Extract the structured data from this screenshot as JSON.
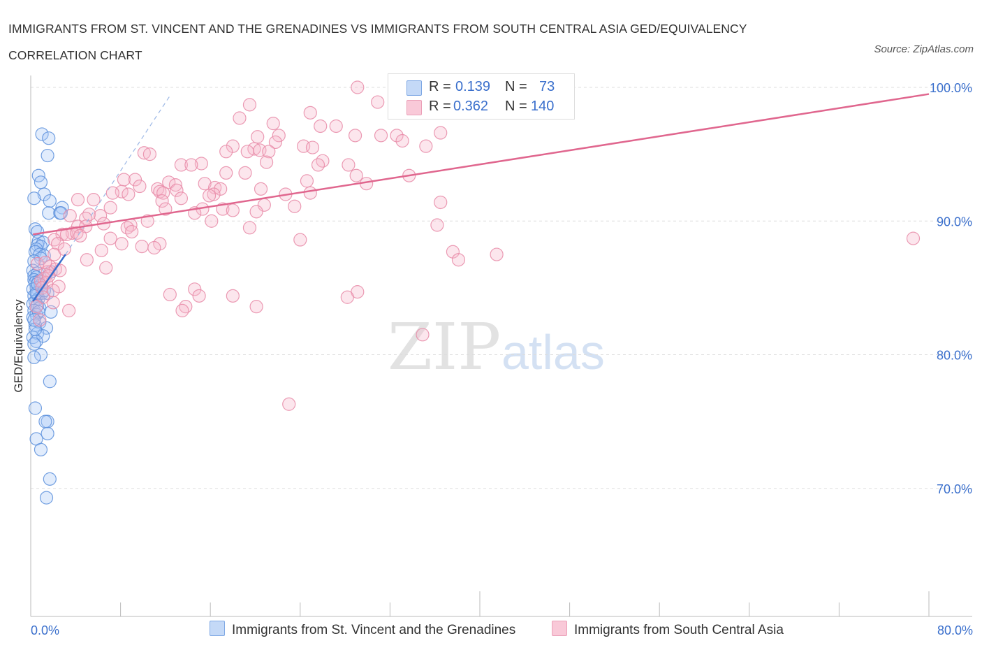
{
  "title": "IMMIGRANTS FROM ST. VINCENT AND THE GRENADINES VS IMMIGRANTS FROM SOUTH CENTRAL ASIA GED/EQUIVALENCY CORRELATION CHART",
  "source": "Source: ZipAtlas.com",
  "watermark": {
    "zip": "ZIP",
    "atlas": "atlas"
  },
  "legend": {
    "r_label": "R =",
    "n_label": "N =",
    "rows": [
      {
        "r": "0.139",
        "n": "73"
      },
      {
        "r": "0.362",
        "n": "140"
      }
    ]
  },
  "colors": {
    "blue_fill": "#a9c8f5",
    "blue_stroke": "#5b8fdc",
    "blue_line": "#3a6fcc",
    "pink_fill": "#f6b8cb",
    "pink_stroke": "#e889a7",
    "pink_line": "#e0668e",
    "tick_label": "#3a6fcc",
    "grid": "#dddddd"
  },
  "chart_data": {
    "type": "scatter",
    "ylabel": "GED/Equivalency",
    "xlabel": "",
    "xlim": [
      0,
      80
    ],
    "ylim": [
      60,
      100
    ],
    "x_tick_labels": [
      "0.0%",
      "80.0%"
    ],
    "y_ticks": [
      70,
      80,
      90,
      100
    ],
    "y_tick_labels": [
      "70.0%",
      "80.0%",
      "90.0%",
      "100.0%"
    ],
    "grid": true,
    "legend_position": "top-center",
    "series": [
      {
        "name": "Immigrants from St. Vincent and the Grenadines",
        "color": "blue",
        "trend": {
          "x": [
            0.2,
            3.1
          ],
          "y": [
            84.0,
            87.5
          ]
        },
        "trend_extension": {
          "x": [
            3.1,
            12.5
          ],
          "y": [
            87.5,
            99.5
          ]
        },
        "points": [
          [
            1.0,
            96.5
          ],
          [
            1.6,
            96.2
          ],
          [
            1.5,
            94.9
          ],
          [
            0.7,
            93.4
          ],
          [
            0.9,
            92.9
          ],
          [
            1.2,
            92.0
          ],
          [
            0.3,
            91.7
          ],
          [
            1.7,
            91.5
          ],
          [
            2.8,
            91.0
          ],
          [
            1.6,
            90.6
          ],
          [
            2.6,
            90.6
          ],
          [
            2.7,
            90.6
          ],
          [
            0.4,
            89.4
          ],
          [
            0.6,
            89.2
          ],
          [
            0.7,
            88.5
          ],
          [
            1.1,
            88.4
          ],
          [
            0.6,
            88.2
          ],
          [
            0.9,
            88.1
          ],
          [
            0.5,
            87.9
          ],
          [
            0.4,
            87.7
          ],
          [
            0.8,
            87.5
          ],
          [
            1.2,
            87.4
          ],
          [
            0.9,
            87.2
          ],
          [
            0.3,
            87.0
          ],
          [
            0.2,
            86.3
          ],
          [
            0.6,
            86.1
          ],
          [
            1.8,
            86.2
          ],
          [
            0.3,
            85.9
          ],
          [
            0.5,
            85.8
          ],
          [
            0.3,
            85.6
          ],
          [
            0.7,
            85.5
          ],
          [
            0.4,
            85.4
          ],
          [
            0.9,
            85.2
          ],
          [
            0.5,
            85.0
          ],
          [
            0.2,
            84.9
          ],
          [
            1.0,
            84.6
          ],
          [
            0.6,
            84.5
          ],
          [
            0.3,
            84.4
          ],
          [
            1.5,
            84.6
          ],
          [
            0.7,
            84.2
          ],
          [
            0.4,
            84.0
          ],
          [
            0.2,
            83.8
          ],
          [
            0.6,
            83.7
          ],
          [
            0.8,
            83.5
          ],
          [
            0.3,
            83.3
          ],
          [
            1.8,
            83.2
          ],
          [
            0.5,
            83.0
          ],
          [
            0.2,
            82.8
          ],
          [
            0.8,
            82.4
          ],
          [
            0.4,
            82.2
          ],
          [
            1.4,
            82.0
          ],
          [
            0.6,
            81.6
          ],
          [
            0.2,
            81.3
          ],
          [
            1.1,
            81.4
          ],
          [
            0.5,
            81.0
          ],
          [
            0.3,
            80.8
          ],
          [
            0.9,
            80.0
          ],
          [
            0.3,
            79.8
          ],
          [
            1.7,
            78.0
          ],
          [
            0.4,
            76.0
          ],
          [
            1.5,
            75.0
          ],
          [
            1.3,
            75.0
          ],
          [
            1.5,
            74.1
          ],
          [
            0.5,
            73.7
          ],
          [
            0.9,
            72.9
          ],
          [
            1.7,
            70.7
          ],
          [
            1.4,
            69.3
          ],
          [
            0.5,
            84.6
          ],
          [
            0.7,
            83.2
          ],
          [
            0.4,
            81.9
          ],
          [
            0.6,
            85.3
          ],
          [
            1.2,
            84.8
          ],
          [
            0.3,
            82.6
          ]
        ]
      },
      {
        "name": "Immigrants from South Central Asia",
        "color": "pink",
        "trend": {
          "x": [
            0.2,
            80
          ],
          "y": [
            89.0,
            99.5
          ]
        },
        "points": [
          [
            29.1,
            100.0
          ],
          [
            30.9,
            98.9
          ],
          [
            19.5,
            98.7
          ],
          [
            33.9,
            98.4
          ],
          [
            24.9,
            98.1
          ],
          [
            18.6,
            97.7
          ],
          [
            21.6,
            97.3
          ],
          [
            27.2,
            97.1
          ],
          [
            25.8,
            97.1
          ],
          [
            36.5,
            96.6
          ],
          [
            22.1,
            96.4
          ],
          [
            28.9,
            96.4
          ],
          [
            31.2,
            96.4
          ],
          [
            32.6,
            96.4
          ],
          [
            20.2,
            96.3
          ],
          [
            33.1,
            96.0
          ],
          [
            21.8,
            95.9
          ],
          [
            24.3,
            95.6
          ],
          [
            25.1,
            95.5
          ],
          [
            35.2,
            95.6
          ],
          [
            18.0,
            95.6
          ],
          [
            19.9,
            95.4
          ],
          [
            20.4,
            95.3
          ],
          [
            17.4,
            95.2
          ],
          [
            10.1,
            95.1
          ],
          [
            21.2,
            95.2
          ],
          [
            19.3,
            95.2
          ],
          [
            10.6,
            95.0
          ],
          [
            26.0,
            94.5
          ],
          [
            15.2,
            94.3
          ],
          [
            13.4,
            94.2
          ],
          [
            14.3,
            94.2
          ],
          [
            25.6,
            94.2
          ],
          [
            28.3,
            94.2
          ],
          [
            21.0,
            94.4
          ],
          [
            17.4,
            93.6
          ],
          [
            19.1,
            93.6
          ],
          [
            29.0,
            93.4
          ],
          [
            33.7,
            93.4
          ],
          [
            8.3,
            93.1
          ],
          [
            9.3,
            93.1
          ],
          [
            12.3,
            92.9
          ],
          [
            24.6,
            93.0
          ],
          [
            15.5,
            92.8
          ],
          [
            12.9,
            92.7
          ],
          [
            9.7,
            92.6
          ],
          [
            16.4,
            92.5
          ],
          [
            16.9,
            92.4
          ],
          [
            13.0,
            92.3
          ],
          [
            11.3,
            92.4
          ],
          [
            20.5,
            92.4
          ],
          [
            29.9,
            92.8
          ],
          [
            8.1,
            92.2
          ],
          [
            11.5,
            92.2
          ],
          [
            7.3,
            92.1
          ],
          [
            11.8,
            92.1
          ],
          [
            16.3,
            92.0
          ],
          [
            22.7,
            92.0
          ],
          [
            8.7,
            92.0
          ],
          [
            24.9,
            92.1
          ],
          [
            13.4,
            91.7
          ],
          [
            15.9,
            91.9
          ],
          [
            11.7,
            91.5
          ],
          [
            4.2,
            91.6
          ],
          [
            5.6,
            91.6
          ],
          [
            36.5,
            91.4
          ],
          [
            20.8,
            91.2
          ],
          [
            23.5,
            91.1
          ],
          [
            7.1,
            91.0
          ],
          [
            15.3,
            90.9
          ],
          [
            17.1,
            90.9
          ],
          [
            12.0,
            90.9
          ],
          [
            18.0,
            90.8
          ],
          [
            20.1,
            90.7
          ],
          [
            14.6,
            90.6
          ],
          [
            5.2,
            90.5
          ],
          [
            3.5,
            90.4
          ],
          [
            6.2,
            90.4
          ],
          [
            4.9,
            90.2
          ],
          [
            16.1,
            90.0
          ],
          [
            10.4,
            90.0
          ],
          [
            6.5,
            89.8
          ],
          [
            8.9,
            89.7
          ],
          [
            4.2,
            89.6
          ],
          [
            4.9,
            89.6
          ],
          [
            36.2,
            89.7
          ],
          [
            19.5,
            89.5
          ],
          [
            8.6,
            89.5
          ],
          [
            9.0,
            89.2
          ],
          [
            3.7,
            89.1
          ],
          [
            2.8,
            89.0
          ],
          [
            3.2,
            89.0
          ],
          [
            4.1,
            89.1
          ],
          [
            4.4,
            88.9
          ],
          [
            2.1,
            88.6
          ],
          [
            7.1,
            88.7
          ],
          [
            24.0,
            88.6
          ],
          [
            8.1,
            88.3
          ],
          [
            11.5,
            88.3
          ],
          [
            9.9,
            88.1
          ],
          [
            11.0,
            88.0
          ],
          [
            2.4,
            88.3
          ],
          [
            6.3,
            87.8
          ],
          [
            37.6,
            87.7
          ],
          [
            41.5,
            87.5
          ],
          [
            2.1,
            87.5
          ],
          [
            5.0,
            87.1
          ],
          [
            38.1,
            87.1
          ],
          [
            6.7,
            86.5
          ],
          [
            1.7,
            86.6
          ],
          [
            2.2,
            86.4
          ],
          [
            1.5,
            86.2
          ],
          [
            2.6,
            86.3
          ],
          [
            1.2,
            85.7
          ],
          [
            0.9,
            85.5
          ],
          [
            1.4,
            85.4
          ],
          [
            1.0,
            85.0
          ],
          [
            2.5,
            85.1
          ],
          [
            14.6,
            84.9
          ],
          [
            29.1,
            84.7
          ],
          [
            12.4,
            84.5
          ],
          [
            18.0,
            84.4
          ],
          [
            15.0,
            84.4
          ],
          [
            28.2,
            84.3
          ],
          [
            2.0,
            83.9
          ],
          [
            13.8,
            83.6
          ],
          [
            20.1,
            83.6
          ],
          [
            3.4,
            83.3
          ],
          [
            13.5,
            83.3
          ],
          [
            34.9,
            81.5
          ],
          [
            23.0,
            76.3
          ],
          [
            78.6,
            88.7
          ],
          [
            0.6,
            86.8
          ],
          [
            1.1,
            84.3
          ],
          [
            0.8,
            82.6
          ],
          [
            1.6,
            85.9
          ],
          [
            2.0,
            84.8
          ],
          [
            3.0,
            87.9
          ],
          [
            0.5,
            83.6
          ],
          [
            1.3,
            86.9
          ]
        ]
      }
    ]
  }
}
